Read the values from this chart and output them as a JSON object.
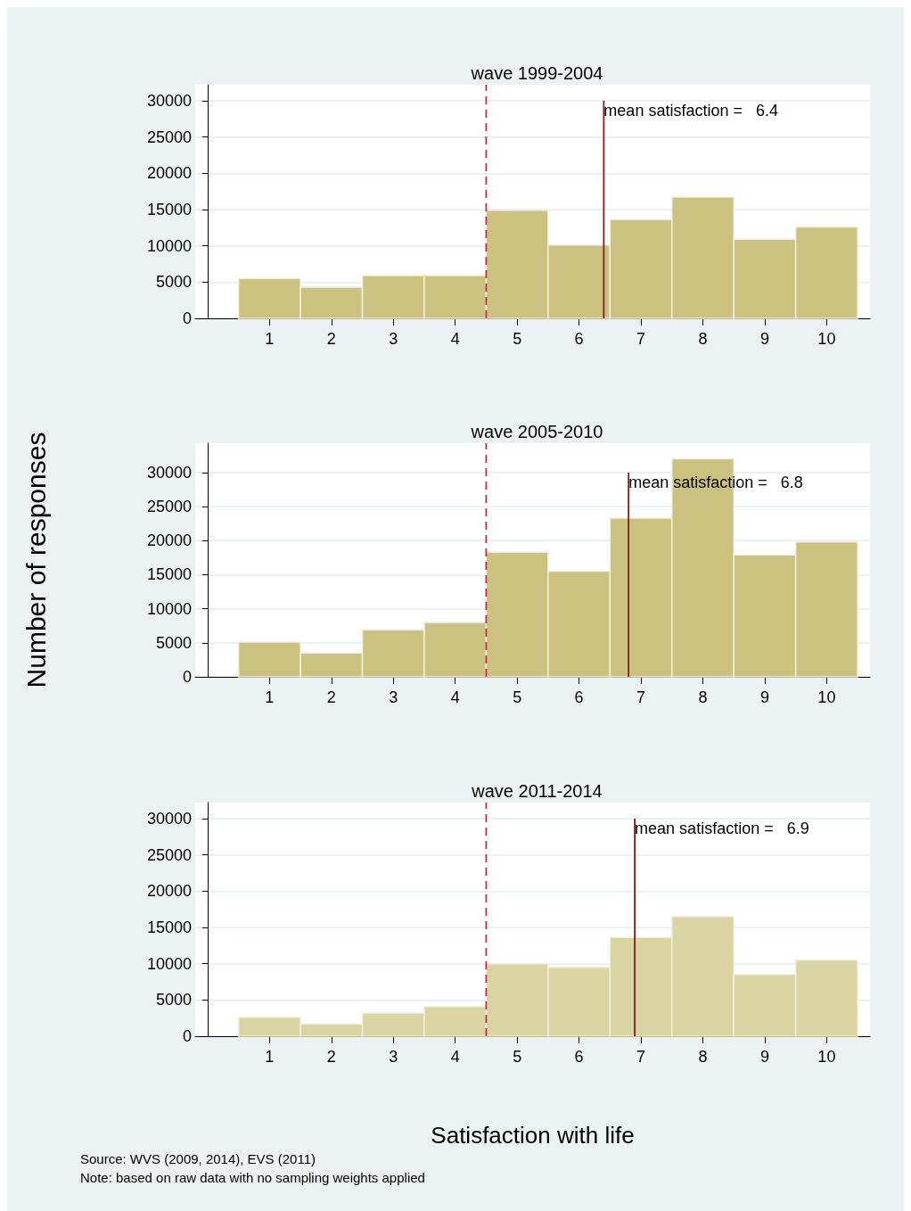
{
  "chart_data": [
    {
      "type": "histogram",
      "title": "wave 1999-2004",
      "bins": [
        0.5,
        1.5,
        2.5,
        3.5,
        4.5,
        5.5,
        6.5,
        7.5,
        8.5,
        9.5,
        10.5
      ],
      "values": [
        5500,
        4300,
        5900,
        5900,
        14900,
        10100,
        13600,
        16700,
        10900,
        12600
      ],
      "color": "#cbc27f",
      "xlim": [
        -0.2,
        10.7
      ],
      "xticks": [
        1,
        2,
        3,
        4,
        5,
        6,
        7,
        8,
        9,
        10
      ],
      "ylim": [
        0,
        32200
      ],
      "yticks": [
        0,
        5000,
        10000,
        15000,
        20000,
        25000,
        30000
      ],
      "grid": "y",
      "ref_lines": [
        {
          "axis": "x",
          "value": 4.5,
          "color": "#d61f4b",
          "line_style": "dashed"
        },
        {
          "axis": "x",
          "value": 6.4,
          "label": "mean satisfaction =   6.4",
          "color": "#8b1a1a",
          "line_style": "solid"
        }
      ]
    },
    {
      "type": "histogram",
      "title": "wave 2005-2010",
      "ylabel": "Number of responses",
      "bins": [
        0.5,
        1.5,
        2.5,
        3.5,
        4.5,
        5.5,
        6.5,
        7.5,
        8.5,
        9.5,
        10.5
      ],
      "values": [
        5100,
        3500,
        6900,
        8000,
        18300,
        15500,
        23300,
        32000,
        17900,
        19800
      ],
      "color": "#cbc27f",
      "xlim": [
        -0.2,
        10.7
      ],
      "xticks": [
        1,
        2,
        3,
        4,
        5,
        6,
        7,
        8,
        9,
        10
      ],
      "ylim": [
        0,
        34300
      ],
      "yticks": [
        0,
        5000,
        10000,
        15000,
        20000,
        25000,
        30000
      ],
      "grid": "y",
      "ref_lines": [
        {
          "axis": "x",
          "value": 4.5,
          "color": "#d61f4b",
          "line_style": "dashed"
        },
        {
          "axis": "x",
          "value": 6.8,
          "label": "mean satisfaction =   6.8",
          "color": "#8b1a1a",
          "line_style": "solid"
        }
      ]
    },
    {
      "type": "histogram",
      "title": "wave 2011-2014",
      "xlabel": "Satisfaction with life",
      "bins": [
        0.5,
        1.5,
        2.5,
        3.5,
        4.5,
        5.5,
        6.5,
        7.5,
        8.5,
        9.5,
        10.5
      ],
      "values": [
        2600,
        1700,
        3200,
        4100,
        10000,
        9500,
        13600,
        16500,
        8500,
        10500
      ],
      "color": "#d9d4a2",
      "xlim": [
        -0.2,
        10.7
      ],
      "xticks": [
        1,
        2,
        3,
        4,
        5,
        6,
        7,
        8,
        9,
        10
      ],
      "ylim": [
        0,
        32200
      ],
      "yticks": [
        0,
        5000,
        10000,
        15000,
        20000,
        25000,
        30000
      ],
      "grid": "y",
      "ref_lines": [
        {
          "axis": "x",
          "value": 4.5,
          "color": "#d61f4b",
          "line_style": "dashed"
        },
        {
          "axis": "x",
          "value": 6.9,
          "label": "mean satisfaction =   6.9",
          "color": "#8b1a1a",
          "line_style": "solid"
        }
      ],
      "annotations": [
        "Source: WVS (2009, 2014), EVS (2011)",
        "Note: based on raw data with no sampling weights applied"
      ]
    }
  ]
}
